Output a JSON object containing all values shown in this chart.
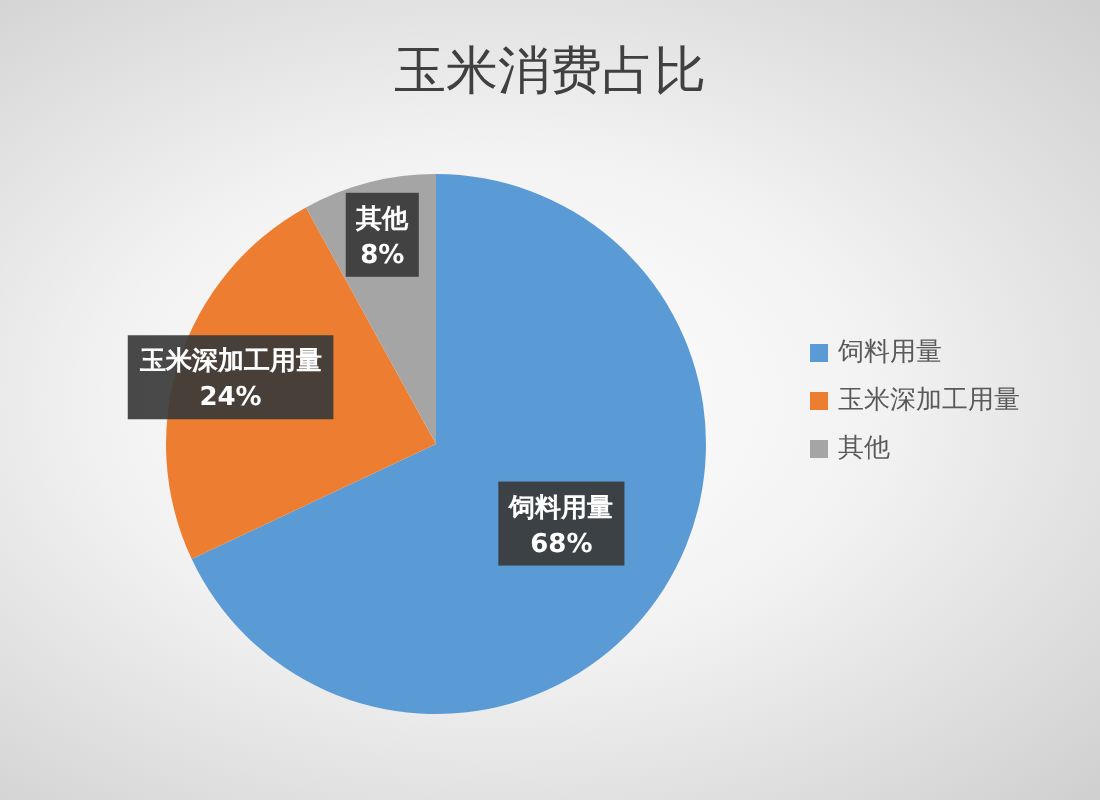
{
  "chart_data": {
    "type": "pie",
    "title": "玉米消费占比",
    "categories": [
      "饲料用量",
      "玉米深加工用量",
      "其他"
    ],
    "values": [
      68,
      24,
      8
    ],
    "value_labels": [
      "68%",
      "24%",
      "8%"
    ],
    "colors": [
      "#5b9bd5",
      "#ed7d31",
      "#a5a5a5"
    ],
    "legend": "right"
  }
}
